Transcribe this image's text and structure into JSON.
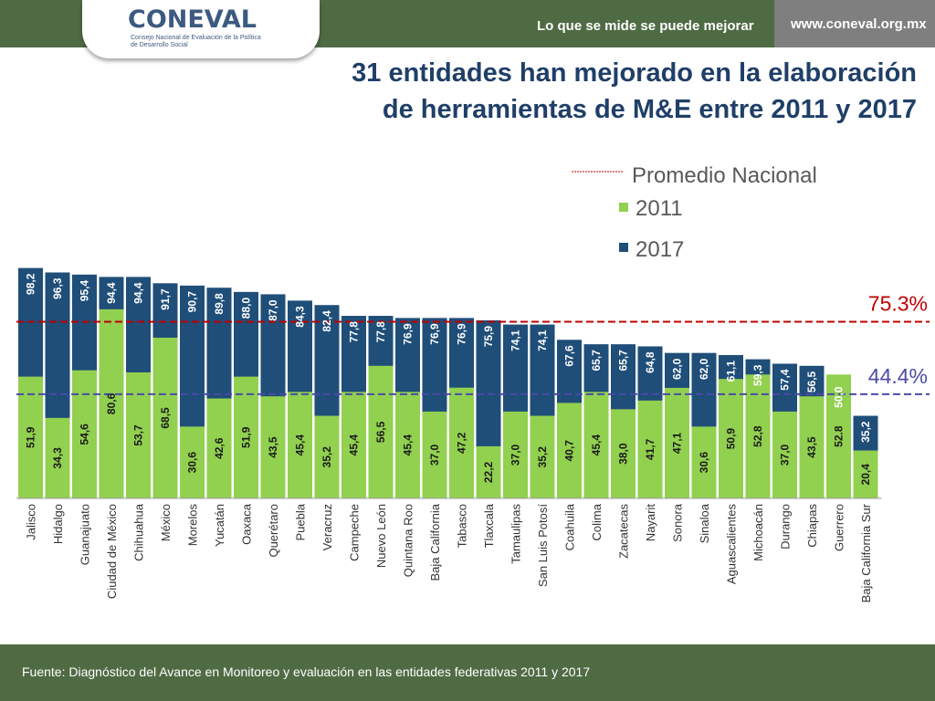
{
  "header": {
    "logo_text": "CONEVAL",
    "logo_subtitle": "Consejo Nacional de Evaluación de la Política de Desarrollo Social",
    "slogan": "Lo que se mide se puede mejorar",
    "website": "www.coneval.org.mx"
  },
  "title_line1": "31 entidades han mejorado en la elaboración",
  "title_line2": "de herramientas de M&E entre 2011 y 2017",
  "footer": {
    "source": "Fuente: Diagnóstico del Avance en Monitoreo y evaluación en las entidades federativas 2011 y 2017"
  },
  "colors": {
    "green": "#92d050",
    "navy": "#1f4e79",
    "red_line": "#c00000",
    "blue_line": "#4a4aa6",
    "header_green": "#4f6b44"
  },
  "chart_data": {
    "type": "bar",
    "title": "31 entidades han mejorado en la elaboración de herramientas de M&E entre 2011 y 2017",
    "xlabel": "",
    "ylabel": "",
    "ylim": [
      0,
      100
    ],
    "categories": [
      "Jalisco",
      "Hidalgo",
      "Guanajuato",
      "Ciudad de México",
      "Chihuahua",
      "México",
      "Morelos",
      "Yucatán",
      "Oaxaca",
      "Querétaro",
      "Puebla",
      "Veracruz",
      "Campeche",
      "Nuevo León",
      "Quintana Roo",
      "Baja California",
      "Tabasco",
      "Tlaxcala",
      "Tamaulipas",
      "San Luis Potosí",
      "Coahuila",
      "Colima",
      "Zacatecas",
      "Nayarit",
      "Sonora",
      "Sinaloa",
      "Aguascalientes",
      "Michoacán",
      "Durango",
      "Chiapas",
      "Guerrero",
      "Baja California Sur"
    ],
    "series": [
      {
        "name": "2011",
        "values": [
          51.9,
          34.3,
          54.6,
          80.6,
          53.7,
          68.5,
          30.6,
          42.6,
          51.9,
          43.5,
          45.4,
          35.2,
          45.4,
          56.5,
          45.4,
          37.0,
          47.2,
          22.2,
          37.0,
          35.2,
          40.7,
          45.4,
          38.0,
          41.7,
          47.1,
          30.6,
          50.9,
          52.8,
          37.0,
          43.5,
          52.8,
          20.4
        ]
      },
      {
        "name": "2017",
        "values": [
          98.2,
          96.3,
          95.4,
          94.4,
          94.4,
          91.7,
          90.7,
          89.8,
          88.0,
          87.0,
          84.3,
          82.4,
          77.8,
          77.8,
          76.9,
          76.9,
          76.9,
          75.9,
          74.1,
          74.1,
          67.6,
          65.7,
          65.7,
          64.8,
          62.0,
          62.0,
          61.1,
          59.3,
          57.4,
          56.5,
          50.0,
          35.2
        ]
      }
    ],
    "labels_2011": [
      "51,9",
      "34,3",
      "54,6",
      "80,6",
      "53,7",
      "68,5",
      "30,6",
      "42,6",
      "51,9",
      "43,5",
      "45,4",
      "35,2",
      "45,4",
      "56,5",
      "45,4",
      "37,0",
      "47,2",
      "22,2",
      "37,0",
      "35,2",
      "40,7",
      "45,4",
      "38,0",
      "41,7",
      "47,1",
      "30,6",
      "50,9",
      "52,8",
      "37,0",
      "43,5",
      "52.8",
      "20,4"
    ],
    "labels_2017": [
      "98,2",
      "96,3",
      "95,4",
      "94,4",
      "94,4",
      "91,7",
      "90,7",
      "89,8",
      "88,0",
      "87,0",
      "84,3",
      "82,4",
      "77,8",
      "77,8",
      "76,9",
      "76,9",
      "76,9",
      "75,9",
      "74,1",
      "74,1",
      "67,6",
      "65,7",
      "65,7",
      "64,8",
      "62,0",
      "62,0",
      "61,1",
      "59,3",
      "57,4",
      "56,5",
      "50,0",
      "35,2"
    ],
    "reference_lines": [
      {
        "name": "Promedio Nacional 2017",
        "value": 75.3,
        "label": "75.3%"
      },
      {
        "name": "Promedio Nacional 2011",
        "value": 44.4,
        "label": "44.4%"
      }
    ],
    "legend": [
      "Promedio Nacional",
      "2011",
      "2017"
    ],
    "legend_position": "top-right"
  }
}
